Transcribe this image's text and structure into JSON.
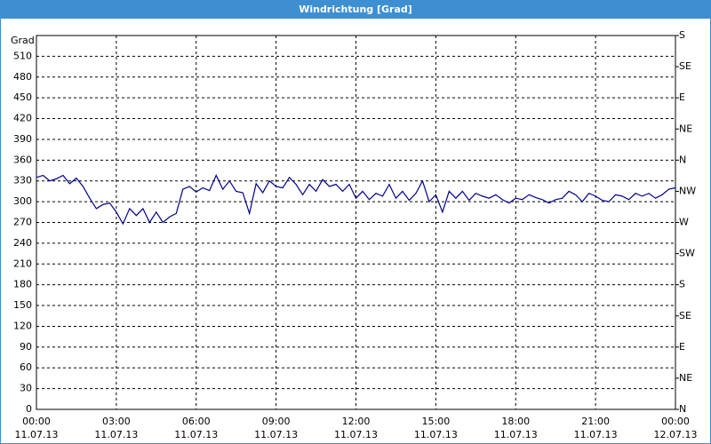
{
  "window_title": "Windrichtung [Grad]",
  "chart_data": {
    "type": "line",
    "ylabel": "Grad",
    "x": [
      0,
      0.25,
      0.5,
      0.75,
      1,
      1.25,
      1.5,
      1.75,
      2,
      2.25,
      2.5,
      2.75,
      3,
      3.25,
      3.5,
      3.75,
      4,
      4.25,
      4.5,
      4.75,
      5,
      5.25,
      5.5,
      5.75,
      6,
      6.25,
      6.5,
      6.75,
      7,
      7.25,
      7.5,
      7.75,
      8,
      8.25,
      8.5,
      8.75,
      9,
      9.25,
      9.5,
      9.75,
      10,
      10.25,
      10.5,
      10.75,
      11,
      11.25,
      11.5,
      11.75,
      12,
      12.25,
      12.5,
      12.75,
      13,
      13.25,
      13.5,
      13.75,
      14,
      14.25,
      14.5,
      14.75,
      15,
      15.25,
      15.5,
      15.75,
      16,
      16.25,
      16.5,
      16.75,
      17,
      17.25,
      17.5,
      17.75,
      18,
      18.25,
      18.5,
      18.75,
      19,
      19.25,
      19.5,
      19.75,
      20,
      20.25,
      20.5,
      20.75,
      21,
      21.25,
      21.5,
      21.75,
      22,
      22.25,
      22.5,
      22.75,
      23,
      23.25,
      23.5,
      23.75,
      24
    ],
    "series": [
      {
        "color": "#00008b",
        "values": [
          335,
          338,
          330,
          333,
          338,
          326,
          334,
          322,
          305,
          290,
          296,
          298,
          285,
          268,
          290,
          280,
          290,
          270,
          285,
          270,
          278,
          283,
          318,
          322,
          314,
          320,
          316,
          338,
          318,
          330,
          315,
          313,
          283,
          326,
          313,
          330,
          322,
          320,
          335,
          325,
          310,
          325,
          315,
          332,
          322,
          325,
          315,
          325,
          305,
          315,
          303,
          312,
          308,
          325,
          305,
          315,
          302,
          312,
          330,
          300,
          310,
          285,
          315,
          305,
          315,
          302,
          312,
          308,
          305,
          310,
          303,
          298,
          305,
          303,
          310,
          306,
          303,
          298,
          303,
          305,
          315,
          310,
          300,
          312,
          308,
          302,
          300,
          310,
          308,
          303,
          312,
          308,
          312,
          305,
          310,
          318,
          320
        ]
      }
    ],
    "xlim": [
      0,
      24
    ],
    "xticks": [
      {
        "value": 0,
        "label": "00:00"
      },
      {
        "value": 3,
        "label": "03:00"
      },
      {
        "value": 6,
        "label": "06:00"
      },
      {
        "value": 9,
        "label": "09:00"
      },
      {
        "value": 12,
        "label": "12:00"
      },
      {
        "value": 15,
        "label": "15:00"
      },
      {
        "value": 18,
        "label": "18:00"
      },
      {
        "value": 21,
        "label": "21:00"
      },
      {
        "value": 24,
        "label": "00:00"
      }
    ],
    "xtick_dates": [
      "11.07.13",
      "11.07.13",
      "11.07.13",
      "11.07.13",
      "11.07.13",
      "11.07.13",
      "11.07.13",
      "11.07.13",
      "12.07.13"
    ],
    "ylim": [
      0,
      540
    ],
    "yticks": [
      0,
      30,
      60,
      90,
      120,
      150,
      180,
      210,
      240,
      270,
      300,
      330,
      360,
      390,
      420,
      450,
      480,
      510
    ],
    "y2lim": [
      0,
      540
    ],
    "y2ticks": [
      {
        "value": 0,
        "label": "N"
      },
      {
        "value": 45,
        "label": "NE"
      },
      {
        "value": 90,
        "label": "E"
      },
      {
        "value": 135,
        "label": "SE"
      },
      {
        "value": 180,
        "label": "S"
      },
      {
        "value": 225,
        "label": "SW"
      },
      {
        "value": 270,
        "label": "W"
      },
      {
        "value": 315,
        "label": "NW"
      },
      {
        "value": 360,
        "label": "N"
      },
      {
        "value": 405,
        "label": "NE"
      },
      {
        "value": 450,
        "label": "E"
      },
      {
        "value": 495,
        "label": "SE"
      },
      {
        "value": 540,
        "label": "S"
      }
    ],
    "grid": true
  }
}
